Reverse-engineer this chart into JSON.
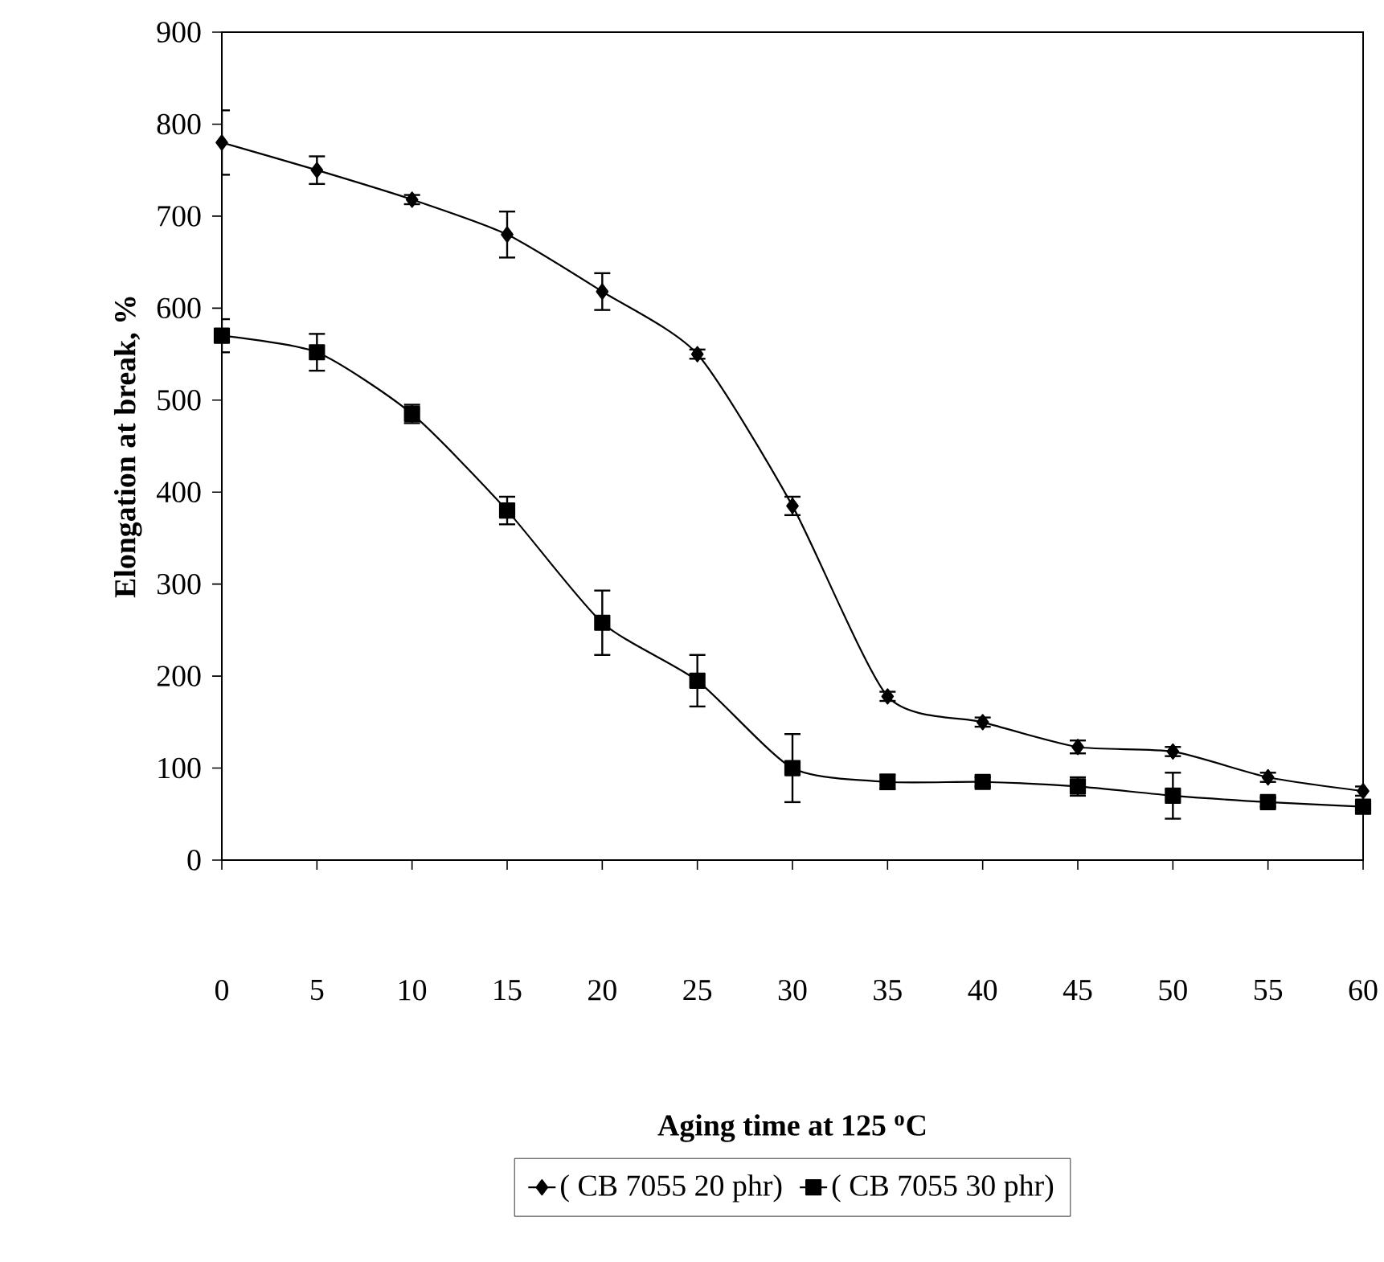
{
  "chart_data": {
    "type": "line",
    "xlabel": "Aging time at 125 $^{o}$C",
    "ylabel": "Elongation at break, %",
    "x": [
      0,
      5,
      10,
      15,
      20,
      25,
      30,
      35,
      40,
      45,
      50,
      55,
      60
    ],
    "xlim": [
      0,
      60
    ],
    "xticks": [
      0,
      5,
      10,
      15,
      20,
      25,
      30,
      35,
      40,
      45,
      50,
      55,
      60
    ],
    "ylim": [
      0,
      900
    ],
    "yticks": [
      0,
      100,
      200,
      300,
      400,
      500,
      600,
      700,
      800,
      900
    ],
    "series": [
      {
        "name": "( CB 7055 20 phr)",
        "color": "#000000",
        "marker": "diamond",
        "values": [
          780,
          750,
          718,
          680,
          618,
          550,
          385,
          178,
          150,
          123,
          118,
          90,
          75
        ],
        "errors": [
          35,
          15,
          5,
          25,
          20,
          5,
          10,
          5,
          5,
          7,
          5,
          5,
          5
        ]
      },
      {
        "name": "( CB 7055 30 phr)",
        "color": "#000000",
        "marker": "square",
        "values": [
          570,
          552,
          485,
          380,
          258,
          195,
          100,
          85,
          85,
          80,
          70,
          63,
          58
        ],
        "errors": [
          18,
          20,
          10,
          15,
          35,
          28,
          37,
          8,
          5,
          10,
          25,
          5,
          5
        ]
      }
    ],
    "grid": false,
    "legend": "bottom",
    "line_style": "solid"
  }
}
